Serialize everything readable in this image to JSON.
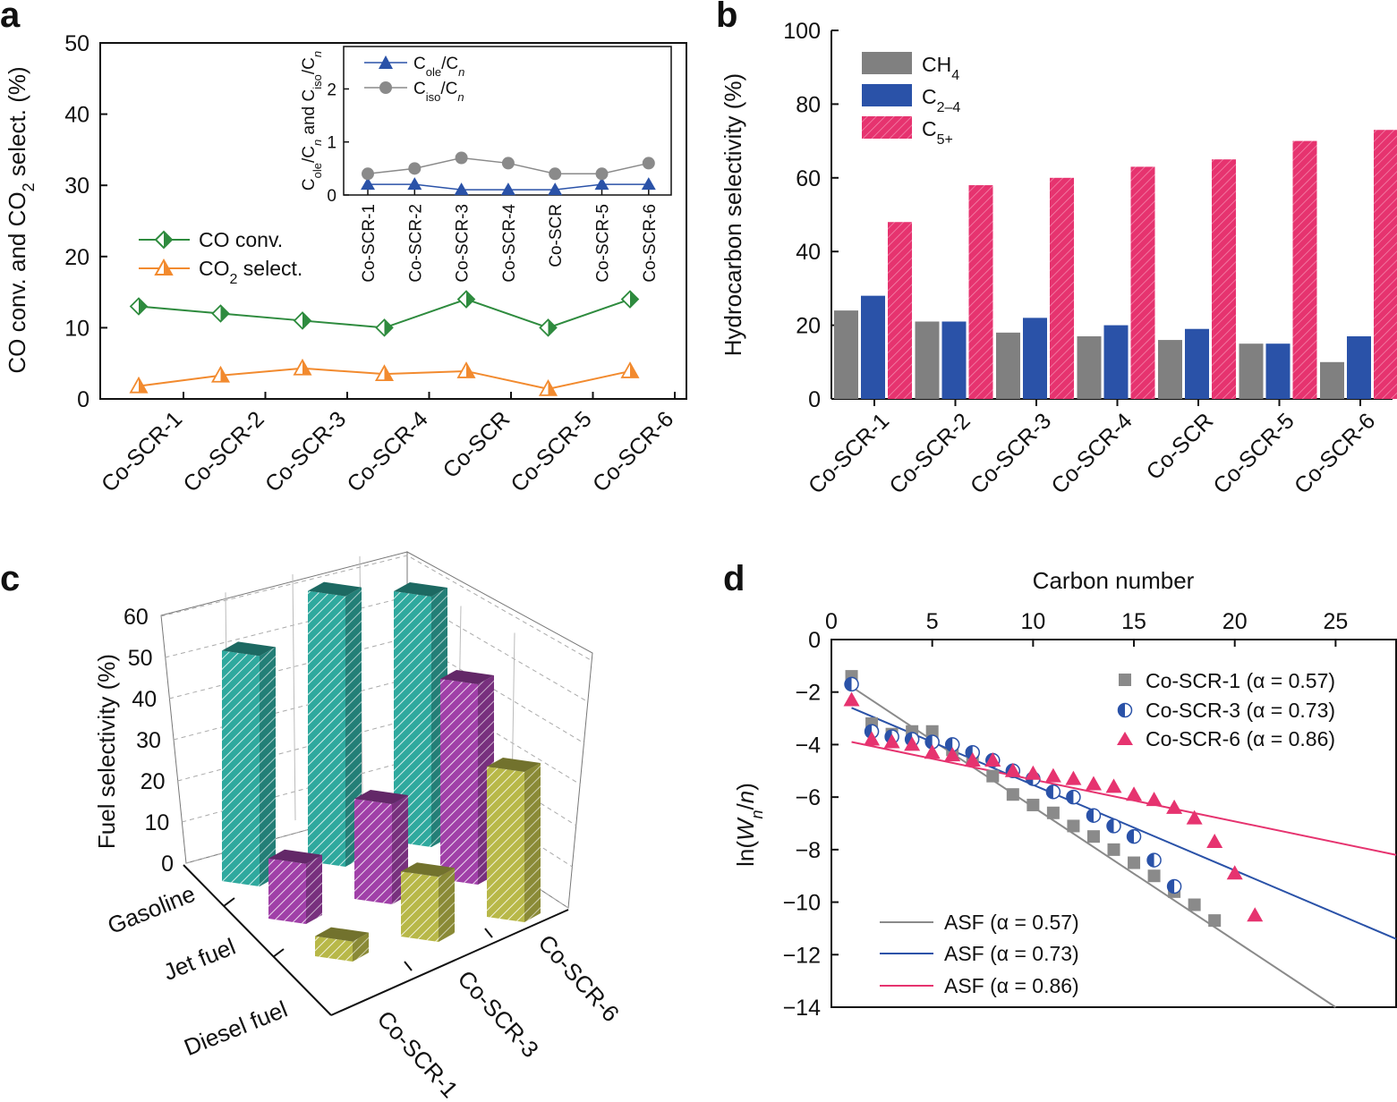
{
  "panels": {
    "a": "a",
    "b": "b",
    "c": "c",
    "d": "d"
  },
  "colors": {
    "co_conv": "#2e8b3e",
    "co2": "#f28a2e",
    "ole": "#2a52a8",
    "iso": "#8a8a8a",
    "ch4": "#808080",
    "c24": "#2a52a8",
    "c5": "#e6336f",
    "gasoline": "#2fa99e",
    "jet": "#a040a8",
    "diesel": "#b8b848",
    "asf1": "#8a8a8a",
    "asf3": "#2a52a8",
    "asf6": "#e6336f"
  },
  "chart_data": [
    {
      "id": "a",
      "type": "line",
      "categories": [
        "Co-SCR-1",
        "Co-SCR-2",
        "Co-SCR-3",
        "Co-SCR-4",
        "Co-SCR",
        "Co-SCR-5",
        "Co-SCR-6"
      ],
      "ylabel": "CO conv. and CO2 select. (%)",
      "ylim": [
        0,
        50
      ],
      "yticks": [
        "0",
        "10",
        "20",
        "30",
        "40",
        "50"
      ],
      "series": [
        {
          "name": "CO conv.",
          "values": [
            13,
            12,
            11,
            10,
            14,
            10,
            14
          ]
        },
        {
          "name": "CO2 select.",
          "values": [
            1.8,
            3.3,
            4.3,
            3.5,
            3.9,
            1.4,
            3.9
          ]
        }
      ],
      "legend": [
        "CO conv.",
        "CO₂ select."
      ],
      "inset": {
        "type": "line",
        "ylabel": "Cole/Cn and Ciso/Cn",
        "ylim": [
          0,
          2.8
        ],
        "yticks": [
          "0",
          "1",
          "2"
        ],
        "series": [
          {
            "name": "Cole/Cn",
            "values": [
              0.2,
              0.2,
              0.1,
              0.1,
              0.1,
              0.2,
              0.2
            ]
          },
          {
            "name": "Ciso/Cn",
            "values": [
              0.4,
              0.5,
              0.7,
              0.6,
              0.4,
              0.4,
              0.6
            ]
          }
        ]
      }
    },
    {
      "id": "b",
      "type": "bar",
      "categories": [
        "Co-SCR-1",
        "Co-SCR-2",
        "Co-SCR-3",
        "Co-SCR-4",
        "Co-SCR",
        "Co-SCR-5",
        "Co-SCR-6"
      ],
      "ylabel": "Hydrocarbon selectivity (%)",
      "ylim": [
        0,
        100
      ],
      "yticks": [
        "0",
        "20",
        "40",
        "60",
        "80",
        "100"
      ],
      "series": [
        {
          "name": "CH4",
          "values": [
            24,
            21,
            18,
            17,
            16,
            15,
            10
          ]
        },
        {
          "name": "C2–4",
          "values": [
            28,
            21,
            22,
            20,
            19,
            15,
            17
          ]
        },
        {
          "name": "C5+",
          "values": [
            48,
            58,
            60,
            63,
            65,
            70,
            73
          ]
        }
      ]
    },
    {
      "id": "c",
      "type": "bar",
      "ylabel": "Fuel selectivity (%)",
      "zlim": [
        0,
        60
      ],
      "zticks": [
        "0",
        "10",
        "20",
        "30",
        "40",
        "50",
        "60"
      ],
      "categories": [
        "Co-SCR-1",
        "Co-SCR-3",
        "Co-SCR-6"
      ],
      "fuels": [
        "Gasoline",
        "Jet fuel",
        "Diesel fuel"
      ],
      "series": [
        {
          "name": "Gasoline",
          "values": [
            46,
            54,
            50
          ]
        },
        {
          "name": "Jet fuel",
          "values": [
            12,
            20,
            40
          ]
        },
        {
          "name": "Diesel fuel",
          "values": [
            4,
            13,
            30
          ]
        }
      ]
    },
    {
      "id": "d",
      "type": "scatter",
      "xlabel": "Carbon number",
      "ylabel": "ln(Wn/n)",
      "xlim": [
        0,
        28
      ],
      "ylim": [
        -14,
        0
      ],
      "xticks": [
        "0",
        "5",
        "10",
        "15",
        "20",
        "25"
      ],
      "yticks": [
        "0",
        "−2",
        "−4",
        "−6",
        "−8",
        "−10",
        "−12",
        "−14"
      ],
      "series": [
        {
          "name": "Co-SCR-1 (α = 0.57)",
          "x": [
            1,
            2,
            3,
            4,
            5,
            6,
            7,
            8,
            9,
            10,
            11,
            12,
            13,
            14,
            15,
            16,
            17,
            18,
            19
          ],
          "y": [
            -1.4,
            -3.2,
            -3.6,
            -3.5,
            -3.5,
            -4.2,
            -4.5,
            -5.2,
            -5.9,
            -6.3,
            -6.6,
            -7.1,
            -7.5,
            -8.0,
            -8.5,
            -9.0,
            -9.6,
            -10.1,
            -10.7
          ]
        },
        {
          "name": "Co-SCR-3 (α = 0.73)",
          "x": [
            1,
            2,
            3,
            4,
            5,
            6,
            7,
            8,
            9,
            10,
            11,
            12,
            13,
            14,
            15,
            16,
            17
          ],
          "y": [
            -1.7,
            -3.5,
            -3.7,
            -3.8,
            -3.9,
            -4.0,
            -4.3,
            -4.6,
            -5.0,
            -5.3,
            -5.8,
            -6.0,
            -6.7,
            -7.1,
            -7.5,
            -8.4,
            -9.4
          ]
        },
        {
          "name": "Co-SCR-6 (α = 0.86)",
          "x": [
            1,
            2,
            3,
            4,
            5,
            6,
            7,
            8,
            9,
            10,
            11,
            12,
            13,
            14,
            15,
            16,
            17,
            18,
            19,
            20,
            21
          ],
          "y": [
            -2.3,
            -3.8,
            -3.9,
            -4.0,
            -4.3,
            -4.4,
            -4.6,
            -4.6,
            -5.0,
            -5.1,
            -5.2,
            -5.3,
            -5.5,
            -5.6,
            -5.9,
            -6.1,
            -6.4,
            -6.8,
            -7.7,
            -8.9,
            -10.5
          ]
        }
      ],
      "fits": [
        {
          "name": "ASF (α = 0.57)",
          "x": [
            1,
            25
          ],
          "y": [
            -1.8,
            -14
          ]
        },
        {
          "name": "ASF (α = 0.73)",
          "x": [
            1,
            28
          ],
          "y": [
            -2.6,
            -11.4
          ]
        },
        {
          "name": "ASF (α = 0.86)",
          "x": [
            1,
            28
          ],
          "y": [
            -3.9,
            -8.2
          ]
        }
      ]
    }
  ]
}
